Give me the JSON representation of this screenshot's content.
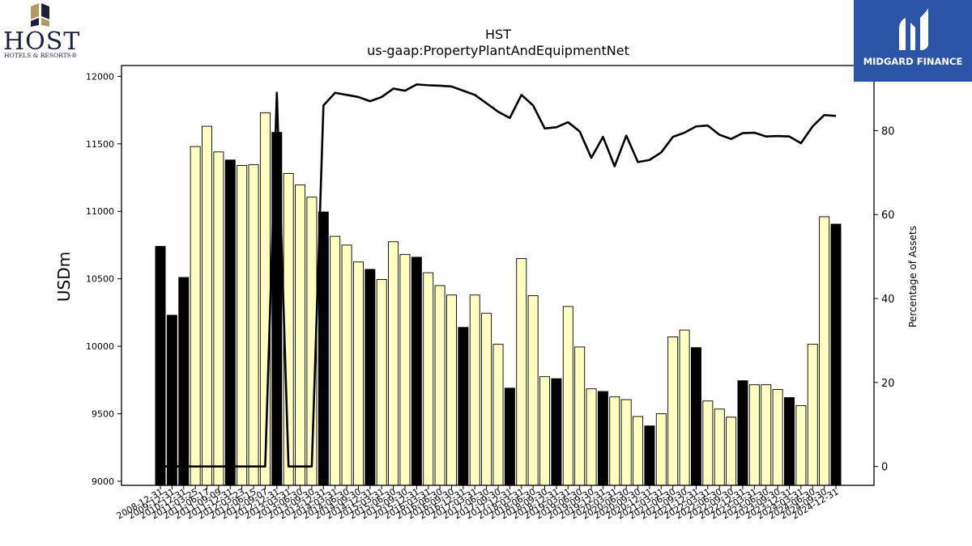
{
  "logos": {
    "host_word": "HOST",
    "host_sub": "HOTELS & RESORTS®",
    "midgard_text": "MIDGARD FINANCE"
  },
  "colors": {
    "bar_fill": "#ffffc0",
    "bar_fill_highlight": "#000000",
    "line": "#000000",
    "midgard_bg": "#2c55a8",
    "host_navy": "#1c1f3f",
    "host_gold": "#b49a5e"
  },
  "chart_data": {
    "type": "bar",
    "title": "HST",
    "subtitle": "us-gaap:PropertyPlantAndEquipmentNet",
    "ylabel": "USDm",
    "y2label": "Percentage of Assets",
    "ylim": [
      8970,
      12080
    ],
    "y2lim": [
      -4.5,
      95.5
    ],
    "yticks": [
      9000,
      9500,
      10000,
      10500,
      11000,
      11500,
      12000
    ],
    "y2ticks": [
      0,
      20,
      40,
      60,
      80
    ],
    "categories": [
      "2008-12-31",
      "2009-12-31",
      "2010-12-31",
      "2011-03-25",
      "2011-06-17",
      "2011-09-09",
      "2011-12-31",
      "2012-03-23",
      "2012-06-15",
      "2012-09-07",
      "2012-12-31",
      "2013-03-31",
      "2013-06-30",
      "2013-09-30",
      "2013-12-31",
      "2014-03-31",
      "2014-06-30",
      "2014-09-30",
      "2014-12-31",
      "2015-03-31",
      "2015-06-30",
      "2015-09-30",
      "2015-12-31",
      "2016-03-31",
      "2016-06-30",
      "2016-09-30",
      "2016-12-31",
      "2017-03-31",
      "2017-06-30",
      "2017-09-30",
      "2017-12-31",
      "2018-03-31",
      "2018-06-30",
      "2018-09-30",
      "2018-12-31",
      "2019-03-31",
      "2019-06-30",
      "2019-09-30",
      "2019-12-31",
      "2020-03-31",
      "2020-06-30",
      "2020-09-30",
      "2020-12-31",
      "2021-03-31",
      "2021-06-30",
      "2021-09-30",
      "2021-12-31",
      "2022-03-31",
      "2022-06-30",
      "2022-09-30",
      "2022-12-31",
      "2023-03-31",
      "2023-06-30",
      "2023-09-30",
      "2023-12-31",
      "2024-03-31",
      "2024-06-30",
      "2024-09-30",
      "2024-12-31"
    ],
    "series": [
      {
        "values": [
          10740,
          10230,
          10510,
          11480,
          11630,
          11440,
          11380,
          11340,
          11345,
          11730,
          11585,
          11280,
          11195,
          11105,
          10995,
          10815,
          10750,
          10625,
          10570,
          10495,
          10775,
          10680,
          10660,
          10545,
          10450,
          10380,
          10140,
          10380,
          10245,
          10015,
          9690,
          10650,
          10375,
          9775,
          9760,
          10295,
          9995,
          9685,
          9665,
          9625,
          9605,
          9480,
          9410,
          9500,
          10070,
          10120,
          9990,
          9595,
          9535,
          9475,
          9745,
          9715,
          9715,
          9680,
          9620,
          9560,
          10015,
          10960,
          10905
        ]
      },
      {
        "axis": "right",
        "values": [
          0,
          0,
          0,
          0,
          0,
          0,
          0,
          0,
          0,
          0,
          89,
          0,
          0,
          0,
          86,
          89,
          88.5,
          88,
          87,
          88,
          90,
          89.5,
          91,
          90.8,
          90.7,
          90.5,
          89.5,
          88.5,
          86.5,
          84.5,
          83,
          88.5,
          86,
          80.5,
          80.8,
          82,
          79.8,
          73.5,
          78.5,
          71.5,
          78.8,
          72.5,
          73,
          74.8,
          78.5,
          79.5,
          81,
          81.2,
          79,
          78,
          79.4,
          79.5,
          78.6,
          78.7,
          78.6,
          77,
          81,
          83.7,
          83.5
        ]
      }
    ],
    "highlight": [
      true,
      true,
      true,
      false,
      false,
      false,
      true,
      false,
      false,
      false,
      true,
      false,
      false,
      false,
      true,
      false,
      false,
      false,
      true,
      false,
      false,
      false,
      true,
      false,
      false,
      false,
      true,
      false,
      false,
      false,
      true,
      false,
      false,
      false,
      true,
      false,
      false,
      false,
      true,
      false,
      false,
      false,
      true,
      false,
      false,
      false,
      true,
      false,
      false,
      false,
      true,
      false,
      false,
      false,
      true,
      false,
      false,
      false,
      true
    ],
    "grid": false,
    "legend": "none"
  }
}
